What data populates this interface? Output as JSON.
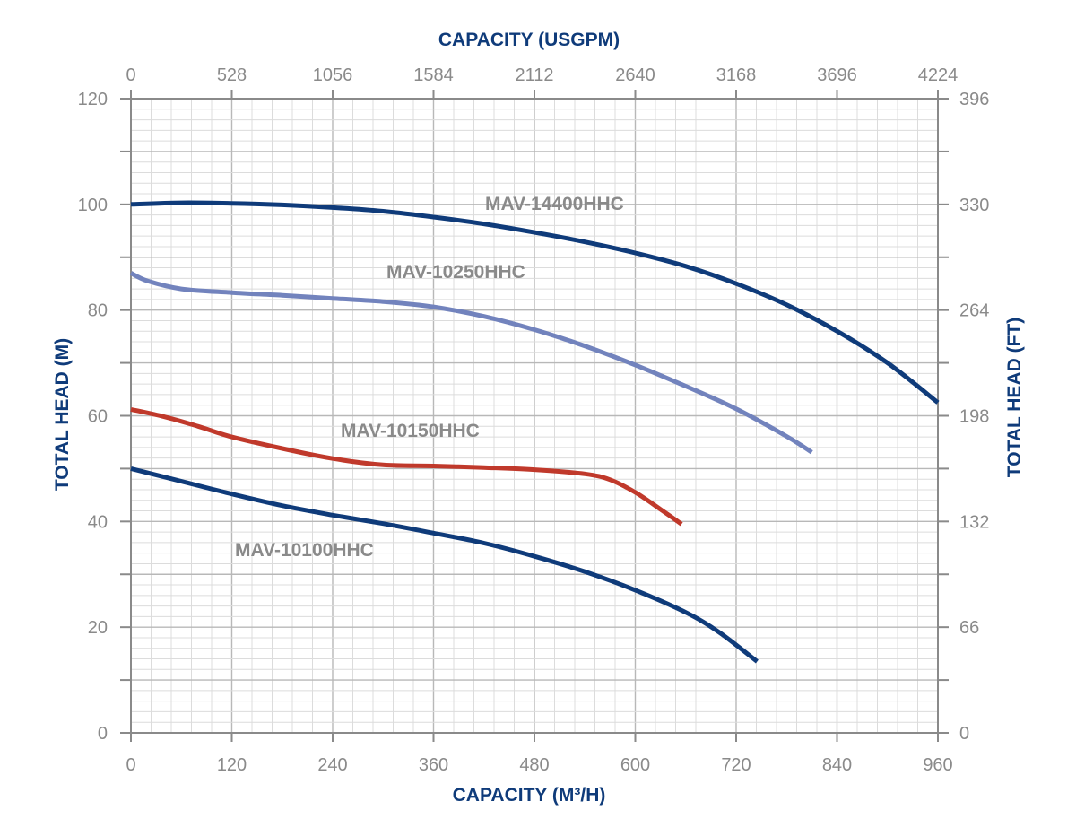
{
  "chart_data": {
    "type": "line",
    "top_axis_title": "CAPACITY (USGPM)",
    "bottom_axis_title": "CAPACITY (M³/H)",
    "left_axis_title": "TOTAL HEAD (M)",
    "right_axis_title": "TOTAL HEAD (FT)",
    "xlim": [
      0,
      960
    ],
    "ylim": [
      0,
      120
    ],
    "x_ticks": [
      "0",
      "120",
      "240",
      "360",
      "480",
      "600",
      "720",
      "840",
      "960"
    ],
    "top_ticks": [
      "0",
      "528",
      "1056",
      "1584",
      "2112",
      "2640",
      "3168",
      "3696",
      "4224"
    ],
    "y_ticks": [
      "0",
      "20",
      "40",
      "60",
      "80",
      "100",
      "120"
    ],
    "right_ticks": [
      "0",
      "66",
      "132",
      "198",
      "264",
      "330",
      "396"
    ],
    "grid": true,
    "series": [
      {
        "name": "MAV-14400HHC",
        "color": "#0f3b7a",
        "x": [
          0,
          60,
          120,
          180,
          240,
          300,
          360,
          420,
          480,
          540,
          600,
          660,
          720,
          780,
          840,
          900,
          960
        ],
        "y": [
          100,
          100.3,
          100.2,
          99.9,
          99.4,
          98.7,
          97.6,
          96.3,
          94.7,
          92.9,
          90.8,
          88.3,
          85,
          81,
          76,
          70,
          62.5
        ]
      },
      {
        "name": "MAV-10250HHC",
        "color": "#7283bd",
        "x": [
          0,
          20,
          60,
          120,
          180,
          240,
          300,
          360,
          420,
          480,
          540,
          600,
          660,
          720,
          780,
          810
        ],
        "y": [
          87,
          85.5,
          84,
          83.3,
          82.8,
          82.2,
          81.6,
          80.6,
          78.8,
          76.3,
          73.2,
          69.6,
          65.6,
          61.3,
          56.1,
          53.1
        ]
      },
      {
        "name": "MAV-10150HHC",
        "color": "#c0392b",
        "x": [
          0,
          40,
          80,
          120,
          180,
          240,
          300,
          360,
          420,
          480,
          540,
          570,
          600,
          630,
          655
        ],
        "y": [
          61.2,
          59.8,
          58,
          56,
          53.8,
          51.9,
          50.7,
          50.5,
          50.2,
          49.8,
          49,
          47.9,
          45.5,
          42.3,
          39.5
        ]
      },
      {
        "name": "MAV-10100HHC",
        "color": "#0f3b7a",
        "x": [
          0,
          60,
          120,
          180,
          240,
          300,
          360,
          420,
          480,
          540,
          600,
          660,
          700,
          745
        ],
        "y": [
          50,
          47.6,
          45.2,
          43,
          41.2,
          39.6,
          37.8,
          35.9,
          33.4,
          30.5,
          27,
          22.8,
          19,
          13.5
        ]
      }
    ]
  }
}
